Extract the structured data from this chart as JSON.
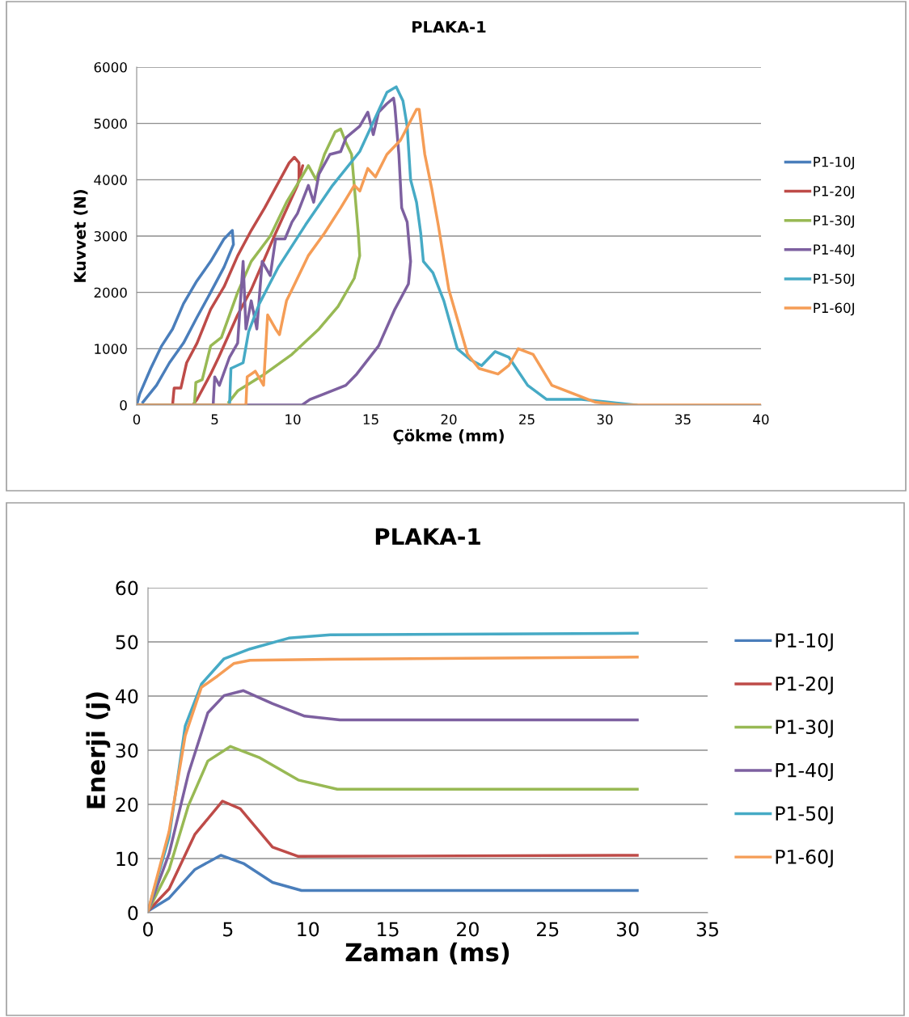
{
  "chart_data": [
    {
      "type": "line",
      "title": "PLAKA-1",
      "xlabel": "Çökme (mm)",
      "ylabel": "Kuvvet (N)",
      "xlim": [
        0,
        40
      ],
      "xticks": [
        0,
        5,
        10,
        15,
        20,
        25,
        30,
        35,
        40
      ],
      "ylim": [
        0,
        6000
      ],
      "yticks": [
        0,
        1000,
        2000,
        3000,
        4000,
        5000,
        6000
      ],
      "grid": "y",
      "legend": "right",
      "marker": "none",
      "line_style": "solid",
      "series": [
        {
          "name": "P1-10J",
          "color": "#4a7ebb",
          "x": [
            0,
            0.2,
            0.9,
            1.6,
            2.3,
            3.0,
            3.85,
            4.74,
            5.6,
            6.13,
            6.2,
            5.6,
            4.74,
            3.85,
            3.0,
            2.1,
            1.27,
            0.4
          ],
          "values": [
            0,
            200,
            650,
            1050,
            1350,
            1800,
            2200,
            2550,
            2950,
            3100,
            2850,
            2450,
            2000,
            1550,
            1100,
            750,
            350,
            50
          ]
        },
        {
          "name": "P1-20J",
          "color": "#be4b48",
          "x": [
            0,
            2.3,
            2.4,
            2.83,
            3.2,
            3.87,
            4.74,
            5.6,
            6.47,
            7.34,
            8.2,
            9.08,
            9.77,
            10.1,
            10.4,
            10.4,
            10.64,
            10.3,
            8.9,
            7.34,
            6.47,
            5.26,
            4.74,
            3.87,
            3.6
          ],
          "values": [
            0,
            0,
            300,
            300,
            750,
            1100,
            1700,
            2100,
            2650,
            3100,
            3500,
            3950,
            4300,
            4400,
            4300,
            4000,
            4250,
            3900,
            3050,
            2050,
            1600,
            850,
            550,
            100,
            0
          ]
        },
        {
          "name": "P1-30J",
          "color": "#98b954",
          "x": [
            0,
            3.7,
            3.79,
            4.2,
            4.74,
            5.43,
            6.47,
            7.34,
            8.56,
            9.6,
            10.47,
            11.0,
            11.5,
            12.03,
            12.72,
            13.07,
            13.42,
            13.77,
            13.94,
            14.2,
            14.29,
            13.94,
            12.9,
            11.68,
            9.95,
            8.2,
            6.47,
            5.9
          ],
          "values": [
            0,
            0,
            400,
            450,
            1050,
            1200,
            2000,
            2550,
            3000,
            3600,
            4000,
            4250,
            4000,
            4450,
            4850,
            4900,
            4650,
            4450,
            3900,
            3050,
            2650,
            2250,
            1750,
            1350,
            900,
            550,
            250,
            50
          ]
        },
        {
          "name": "P1-40J",
          "color": "#7d60a0",
          "x": [
            0,
            4.9,
            5.0,
            5.3,
            5.95,
            6.47,
            6.82,
            7.0,
            7.34,
            7.7,
            8.04,
            8.56,
            8.9,
            9.5,
            9.95,
            10.3,
            11.0,
            11.34,
            11.68,
            12.38,
            13.07,
            13.42,
            14.29,
            14.81,
            15.16,
            15.5,
            16.03,
            16.46,
            16.54,
            16.8,
            16.98,
            17.33,
            17.55,
            17.41,
            16.54,
            15.5,
            14.1,
            13.4,
            12.03,
            11.1,
            10.6,
            7.0
          ],
          "values": [
            0,
            0,
            500,
            350,
            850,
            1100,
            2550,
            1350,
            1850,
            1350,
            2550,
            2300,
            2950,
            2950,
            3250,
            3400,
            3900,
            3600,
            4100,
            4450,
            4500,
            4750,
            4950,
            5200,
            4800,
            5200,
            5350,
            5450,
            5300,
            4450,
            3500,
            3250,
            2550,
            2150,
            1700,
            1050,
            550,
            350,
            200,
            100,
            0,
            0
          ]
        },
        {
          "name": "P1-50J",
          "color": "#46aac5",
          "x": [
            0,
            5.95,
            6.04,
            6.82,
            7.17,
            7.86,
            9.08,
            10.82,
            12.55,
            14.29,
            16.03,
            16.63,
            17.06,
            17.33,
            17.55,
            17.93,
            18.2,
            18.37,
            18.98,
            19.68,
            20.54,
            21.4,
            22.1,
            22.97,
            23.84,
            25.05,
            26.27,
            28.5,
            30.26,
            32
          ],
          "values": [
            0,
            0,
            650,
            750,
            1300,
            1800,
            2450,
            3200,
            3900,
            4500,
            5550,
            5650,
            5400,
            4950,
            4000,
            3600,
            3050,
            2550,
            2350,
            1850,
            1000,
            800,
            700,
            950,
            850,
            350,
            100,
            100,
            50,
            0
          ]
        },
        {
          "name": "P1-60J",
          "color": "#f59d56",
          "x": [
            0,
            7.0,
            7.08,
            7.6,
            8.13,
            8.39,
            8.9,
            9.15,
            9.6,
            9.95,
            10.99,
            12.03,
            13.07,
            13.94,
            14.3,
            14.81,
            15.3,
            16.03,
            16.9,
            17.93,
            18.1,
            18.46,
            18.9,
            19.32,
            20.0,
            21.2,
            21.93,
            23.15,
            23.84,
            24.45,
            25.4,
            26.6,
            28.0,
            29.4,
            31.1,
            40
          ],
          "values": [
            0,
            0,
            500,
            600,
            350,
            1600,
            1350,
            1250,
            1850,
            2050,
            2650,
            3050,
            3500,
            3900,
            3800,
            4200,
            4050,
            4450,
            4700,
            5250,
            5250,
            4450,
            3850,
            3200,
            2050,
            900,
            650,
            550,
            700,
            1000,
            900,
            350,
            200,
            50,
            0,
            0
          ]
        }
      ]
    },
    {
      "type": "line",
      "title": "PLAKA-1",
      "xlabel": "Zaman (ms)",
      "ylabel": "Enerji (j)",
      "xlim": [
        0,
        35
      ],
      "xticks": [
        0,
        5,
        10,
        15,
        20,
        25,
        30,
        35
      ],
      "ylim": [
        0,
        60
      ],
      "yticks": [
        0,
        10,
        20,
        30,
        40,
        50,
        60
      ],
      "grid": "y",
      "legend": "right",
      "marker": "none",
      "line_style": "solid",
      "series": [
        {
          "name": "P1-10J",
          "color": "#4a7ebb",
          "x": [
            0,
            1.32,
            2.94,
            4.55,
            5.97,
            7.79,
            9.6,
            30.6
          ],
          "values": [
            0.3,
            2.7,
            8.0,
            10.6,
            9.1,
            5.6,
            4.1,
            4.1
          ]
        },
        {
          "name": "P1-20J",
          "color": "#be4b48",
          "x": [
            0,
            1.32,
            2.94,
            4.66,
            5.77,
            7.79,
            9.4,
            30.6
          ],
          "values": [
            0.3,
            4.4,
            14.5,
            20.6,
            19.2,
            12.1,
            10.4,
            10.6
          ]
        },
        {
          "name": "P1-30J",
          "color": "#98b954",
          "x": [
            0,
            1.32,
            2.53,
            3.74,
            5.16,
            7.0,
            9.4,
            11.84,
            30.6
          ],
          "values": [
            0.3,
            8.0,
            19.8,
            28.0,
            30.7,
            28.6,
            24.5,
            22.8,
            22.8
          ]
        },
        {
          "name": "P1-40J",
          "color": "#7d60a0",
          "x": [
            0,
            1.32,
            2.53,
            3.74,
            4.76,
            5.97,
            7.79,
            9.8,
            12.0,
            30.6
          ],
          "values": [
            0.3,
            10.9,
            25.7,
            36.9,
            40.1,
            41.0,
            38.6,
            36.3,
            35.6,
            35.6
          ]
        },
        {
          "name": "P1-50J",
          "color": "#46aac5",
          "x": [
            0,
            1.32,
            2.33,
            3.34,
            4.76,
            6.38,
            8.8,
            11.4,
            30.6
          ],
          "values": [
            0.3,
            13.9,
            34.5,
            42.2,
            46.9,
            48.7,
            50.7,
            51.3,
            51.6
          ]
        },
        {
          "name": "P1-60J",
          "color": "#f59d56",
          "x": [
            0,
            1.32,
            2.33,
            3.34,
            4.35,
            5.36,
            6.38,
            11.4,
            30.6
          ],
          "values": [
            0.3,
            15.0,
            32.7,
            41.6,
            43.7,
            46.0,
            46.6,
            46.8,
            47.2
          ]
        }
      ]
    }
  ]
}
